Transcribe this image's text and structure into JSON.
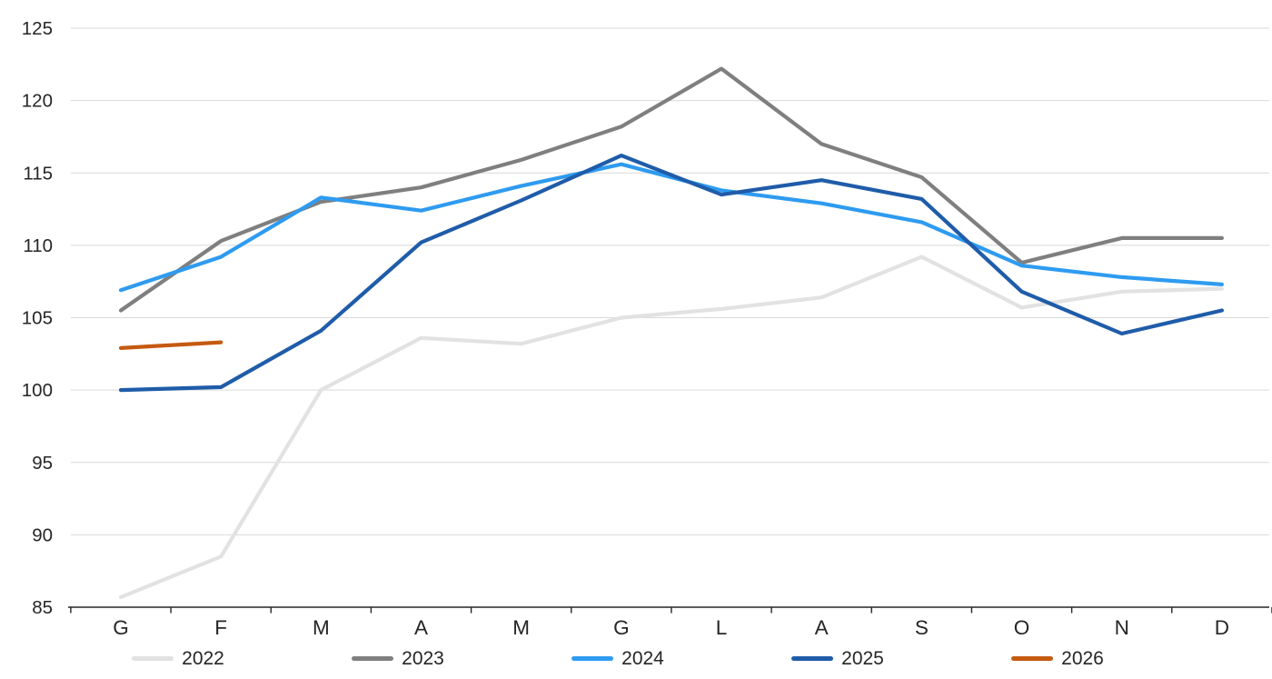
{
  "chart_data": {
    "type": "line",
    "categories": [
      "G",
      "F",
      "M",
      "A",
      "M",
      "G",
      "L",
      "A",
      "S",
      "O",
      "N",
      "D"
    ],
    "series": [
      {
        "name": "2022",
        "color": "#E2E2E2",
        "values": [
          85.7,
          88.5,
          100.0,
          103.6,
          103.2,
          105.0,
          105.6,
          106.4,
          109.2,
          105.7,
          106.8,
          107.0
        ]
      },
      {
        "name": "2023",
        "color": "#7F7F7F",
        "values": [
          105.5,
          110.3,
          113.0,
          114.0,
          115.9,
          118.2,
          122.2,
          117.0,
          114.7,
          108.8,
          110.5,
          110.5
        ]
      },
      {
        "name": "2024",
        "color": "#2E9BF0",
        "values": [
          106.9,
          109.2,
          113.3,
          112.4,
          114.1,
          115.6,
          113.8,
          112.9,
          111.6,
          108.6,
          107.8,
          107.3
        ]
      },
      {
        "name": "2025",
        "color": "#1F5CA9",
        "values": [
          100.0,
          100.2,
          104.1,
          110.2,
          113.1,
          116.2,
          113.5,
          114.5,
          113.2,
          106.8,
          103.9,
          105.5
        ]
      },
      {
        "name": "2026",
        "color": "#C55A11",
        "values": [
          102.9,
          103.3,
          null,
          null,
          null,
          null,
          null,
          null,
          null,
          null,
          null,
          null
        ]
      }
    ],
    "y_ticks": [
      85,
      90,
      95,
      100,
      105,
      110,
      115,
      120,
      125
    ],
    "ylim": [
      85,
      125
    ],
    "grid": true,
    "legend_position": "bottom",
    "legend_entries": [
      "2022",
      "2023",
      "2024",
      "2025",
      "2026"
    ],
    "title": "",
    "xlabel": "",
    "ylabel": ""
  },
  "style": {
    "grid_color": "#D9D9D9",
    "axis_color": "#262626",
    "text_color": "#262626",
    "background": "#FFFFFF"
  }
}
